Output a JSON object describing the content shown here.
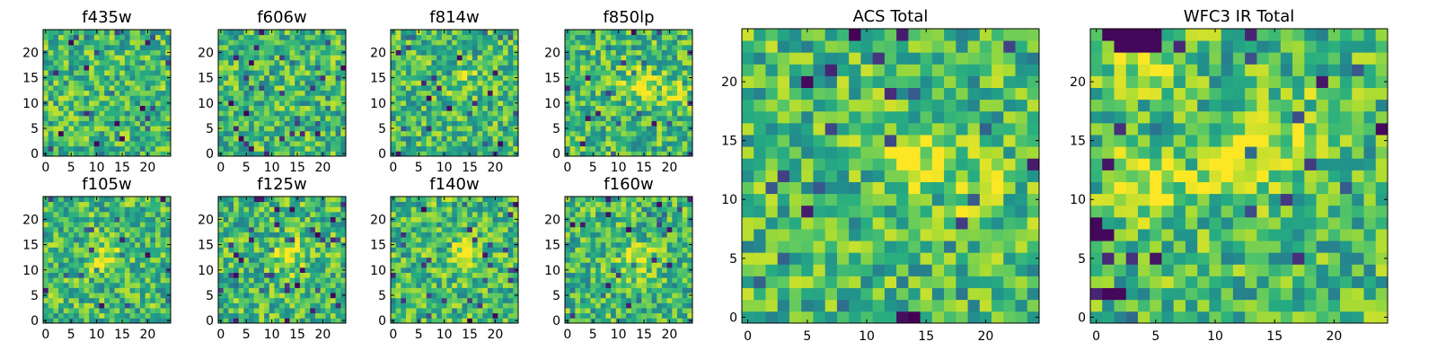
{
  "figure": {
    "description_colormap": "viridis",
    "colors": {
      "low": "#440154",
      "mid": "#21918c",
      "high": "#fde725",
      "axis": "#000000",
      "background": "#ffffff"
    }
  },
  "chart_data": [
    {
      "type": "heatmap",
      "title": "f435w",
      "rows": 25,
      "cols": 25,
      "seed": 11,
      "xticks": [
        "0",
        "5",
        "10",
        "15",
        "20"
      ],
      "yticks": [
        "0",
        "5",
        "10",
        "15",
        "20"
      ],
      "range": [
        -0.5,
        24.5
      ],
      "blobs": []
    },
    {
      "type": "heatmap",
      "title": "f606w",
      "rows": 25,
      "cols": 25,
      "seed": 23,
      "xticks": [
        "0",
        "5",
        "10",
        "15",
        "20"
      ],
      "yticks": [
        "0",
        "5",
        "10",
        "15",
        "20"
      ],
      "range": [
        -0.5,
        24.5
      ],
      "blobs": []
    },
    {
      "type": "heatmap",
      "title": "f814w",
      "rows": 25,
      "cols": 25,
      "seed": 37,
      "xticks": [
        "0",
        "5",
        "10",
        "15",
        "20"
      ],
      "yticks": [
        "0",
        "5",
        "10",
        "15",
        "20"
      ],
      "range": [
        -0.5,
        24.5
      ],
      "blobs": [
        [
          14,
          14,
          0.15
        ]
      ]
    },
    {
      "type": "heatmap",
      "title": "f850lp",
      "rows": 25,
      "cols": 25,
      "seed": 41,
      "xticks": [
        "0",
        "5",
        "10",
        "15",
        "20"
      ],
      "yticks": [
        "0",
        "5",
        "10",
        "15",
        "20"
      ],
      "range": [
        -0.5,
        24.5
      ],
      "blobs": [
        [
          14,
          14,
          0.3
        ],
        [
          20,
          12,
          0.2
        ]
      ]
    },
    {
      "type": "heatmap",
      "title": "f105w",
      "rows": 25,
      "cols": 25,
      "seed": 53,
      "xticks": [
        "0",
        "5",
        "10",
        "15",
        "20"
      ],
      "yticks": [
        "0",
        "5",
        "10",
        "15",
        "20"
      ],
      "range": [
        -0.5,
        24.5
      ],
      "blobs": [
        [
          12,
          12,
          0.3
        ]
      ]
    },
    {
      "type": "heatmap",
      "title": "f125w",
      "rows": 25,
      "cols": 25,
      "seed": 67,
      "xticks": [
        "0",
        "5",
        "10",
        "15",
        "20"
      ],
      "yticks": [
        "0",
        "5",
        "10",
        "15",
        "20"
      ],
      "range": [
        -0.5,
        24.5
      ],
      "blobs": [
        [
          13,
          13,
          0.35
        ]
      ]
    },
    {
      "type": "heatmap",
      "title": "f140w",
      "rows": 25,
      "cols": 25,
      "seed": 71,
      "xticks": [
        "0",
        "5",
        "10",
        "15",
        "20"
      ],
      "yticks": [
        "0",
        "5",
        "10",
        "15",
        "20"
      ],
      "range": [
        -0.5,
        24.5
      ],
      "blobs": [
        [
          14,
          14,
          0.3
        ]
      ]
    },
    {
      "type": "heatmap",
      "title": "f160w",
      "rows": 25,
      "cols": 25,
      "seed": 89,
      "xticks": [
        "0",
        "5",
        "10",
        "15",
        "20"
      ],
      "yticks": [
        "0",
        "5",
        "10",
        "15",
        "20"
      ],
      "range": [
        -0.5,
        24.5
      ],
      "blobs": [
        [
          14,
          12,
          0.3
        ]
      ]
    },
    {
      "type": "heatmap",
      "title": "ACS Total",
      "rows": 25,
      "cols": 25,
      "seed": 97,
      "xticks": [
        "0",
        "5",
        "10",
        "15",
        "20"
      ],
      "yticks": [
        "0",
        "5",
        "10",
        "15",
        "20"
      ],
      "range": [
        -0.5,
        24.5
      ],
      "blobs": [
        [
          14,
          13,
          0.25
        ],
        [
          19,
          11,
          0.2
        ]
      ]
    },
    {
      "type": "heatmap",
      "title": "WFC3 IR Total",
      "rows": 25,
      "cols": 25,
      "seed": 103,
      "xticks": [
        "0",
        "5",
        "10",
        "15",
        "20"
      ],
      "yticks": [
        "0",
        "5",
        "10",
        "15",
        "20"
      ],
      "range": [
        -0.5,
        24.5
      ],
      "blobs": [
        [
          12,
          13,
          0.45
        ],
        [
          4,
          11,
          0.3
        ],
        [
          4,
          22,
          0.3
        ],
        [
          18,
          16,
          0.15
        ]
      ],
      "dark": [
        [
          1,
          24
        ],
        [
          2,
          24
        ],
        [
          3,
          24
        ],
        [
          4,
          24
        ],
        [
          5,
          24
        ],
        [
          2,
          23
        ],
        [
          3,
          23
        ],
        [
          4,
          23
        ],
        [
          5,
          23
        ],
        [
          0,
          8
        ],
        [
          0,
          7
        ],
        [
          1,
          7
        ],
        [
          1,
          2
        ],
        [
          2,
          2
        ]
      ]
    }
  ]
}
